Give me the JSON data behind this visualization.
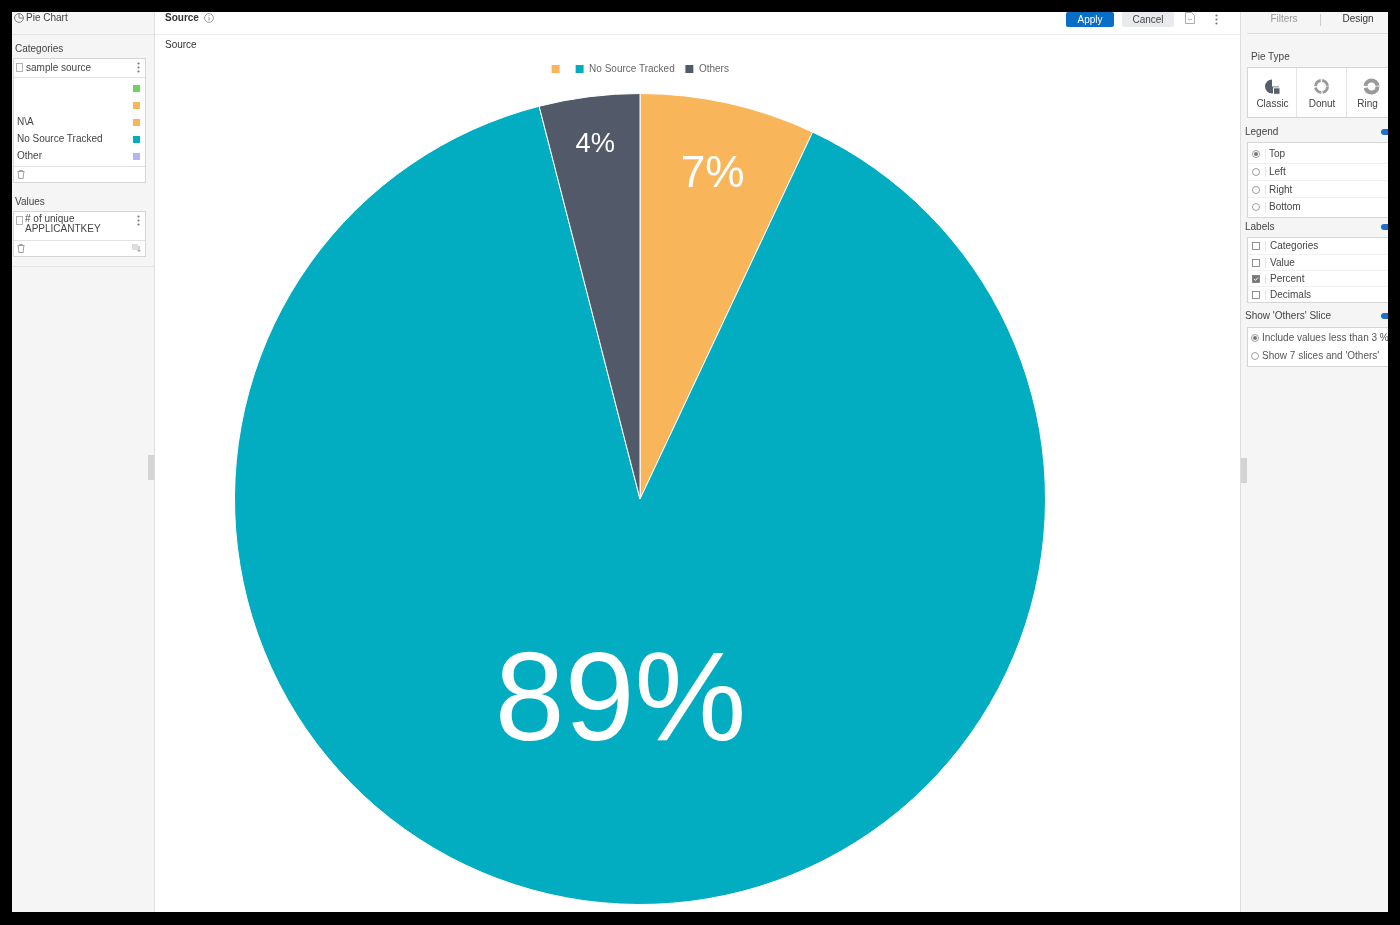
{
  "chart_data": [
    {
      "type": "other",
      "title": "Pie Chart"
    },
    {
      "type": "other",
      "title": "Categories",
      "subtitle": "sample source",
      "categories": [
        null,
        null,
        "N\\A",
        "No Source Tracked",
        "Other"
      ]
    },
    {
      "type": "other",
      "title": "Values",
      "annotations": [
        "# of unique APPLICANTKEY"
      ]
    },
    {
      "type": "other",
      "title": "Source",
      "annotations": [
        "Apply",
        "Cancel"
      ]
    },
    {
      "type": "pie",
      "title": "Source",
      "categories": [
        null,
        "No Source Tracked",
        "Others"
      ],
      "values": [
        7,
        89,
        4
      ],
      "colors": [
        "#f8b55a",
        "#02adc1",
        "#525968"
      ],
      "value_labels": [
        "7%",
        "89%",
        "4%"
      ],
      "legend": "top"
    },
    {
      "type": "other",
      "annotations": [
        "Filters",
        "Design"
      ]
    },
    {
      "type": "other",
      "title": "Pie Type",
      "annotations": [
        "Classic",
        "Donut",
        "Ring"
      ]
    },
    {
      "type": "other",
      "title": "Legend",
      "annotations": [
        "Top",
        "Left",
        "Right",
        "Bottom"
      ]
    },
    {
      "type": "other",
      "title": "Labels",
      "annotations": [
        "Categories",
        "Value",
        "Percent",
        "Decimals"
      ]
    },
    {
      "type": "other",
      "title": "Show 'Others' Slice",
      "annotations": [
        "Include values less than 3 %",
        "Show 7 slices and 'Others'"
      ]
    }
  ]
}
